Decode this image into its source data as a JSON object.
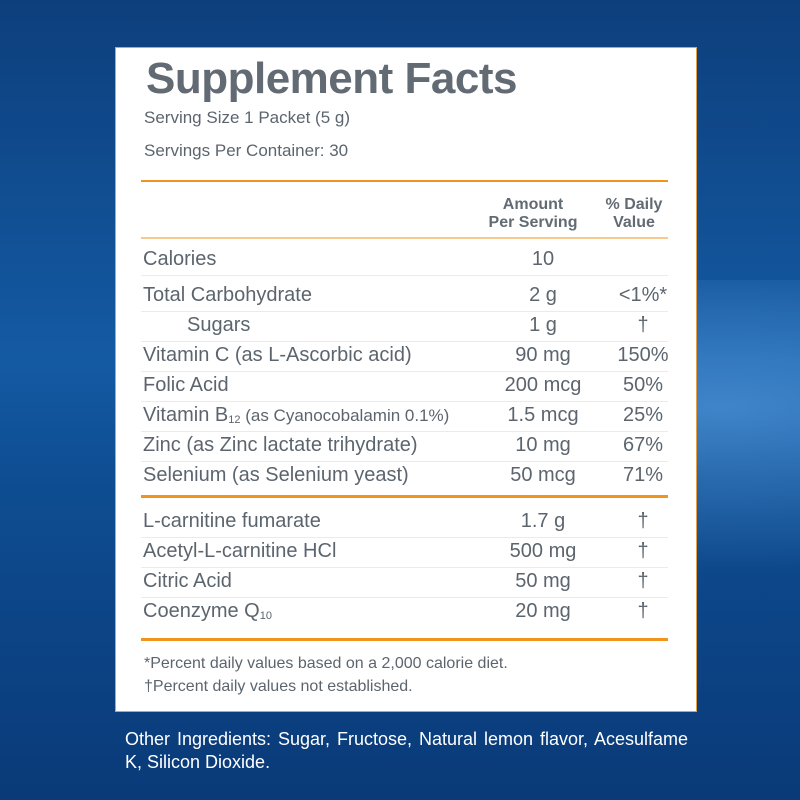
{
  "title": "Supplement Facts",
  "serving_size": "Serving Size 1 Packet (5 g)",
  "servings_per_container": "Servings Per Container: 30",
  "headers": {
    "amount_1": "Amount",
    "amount_2": "Per Serving",
    "dv_1": "% Daily",
    "dv_2": "Value"
  },
  "rows": [
    {
      "name": "Calories",
      "amount": "10",
      "dv": ""
    },
    {
      "name": "Total Carbohydrate",
      "amount": "2 g",
      "dv": "<1%*"
    },
    {
      "name": "Sugars",
      "amount": "1 g",
      "dv": "†"
    },
    {
      "name": "Vitamin C (as L-Ascorbic acid)",
      "amount": "90 mg",
      "dv": "150%"
    },
    {
      "name": "Folic Acid",
      "amount": "200 mcg",
      "dv": "50%"
    },
    {
      "name": "Vitamin B",
      "sub": "12",
      "name_rest": " (as Cyanocobalamin 0.1%)",
      "amount": "1.5 mcg",
      "dv": "25%"
    },
    {
      "name": "Zinc (as Zinc lactate trihydrate)",
      "amount": "10 mg",
      "dv": "67%"
    },
    {
      "name": "Selenium (as Selenium yeast)",
      "amount": "50 mcg",
      "dv": "71%"
    }
  ],
  "rows2": [
    {
      "name": "L-carnitine fumarate",
      "amount": "1.7 g",
      "dv": "†"
    },
    {
      "name": "Acetyl-L-carnitine HCl",
      "amount": "500 mg",
      "dv": "†"
    },
    {
      "name": "Citric Acid",
      "amount": "50 mg",
      "dv": "†"
    },
    {
      "name": "Coenzyme Q",
      "sub": "10",
      "amount": "20 mg",
      "dv": "†"
    }
  ],
  "footnotes": [
    "*Percent daily values based on a 2,000 calorie diet.",
    "†Percent daily values not established."
  ],
  "other_ingredients": "Other Ingredients: Sugar, Fructose, Natural lemon flavor, Acesulfame K, Silicon Dioxide.",
  "colors": {
    "accent": "#f0941e",
    "text": "#5c656e",
    "background": "#0d3f7c"
  }
}
